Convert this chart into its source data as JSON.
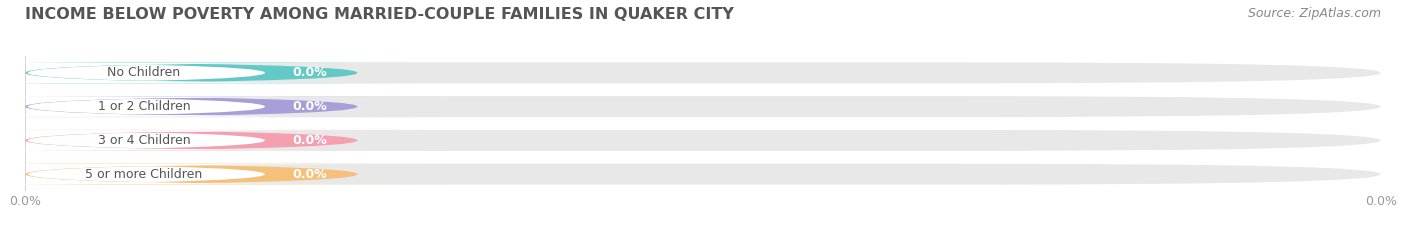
{
  "title": "INCOME BELOW POVERTY AMONG MARRIED-COUPLE FAMILIES IN QUAKER CITY",
  "source": "Source: ZipAtlas.com",
  "categories": [
    "No Children",
    "1 or 2 Children",
    "3 or 4 Children",
    "5 or more Children"
  ],
  "values": [
    0.0,
    0.0,
    0.0,
    0.0
  ],
  "bar_colors": [
    "#62c9c4",
    "#a89fd8",
    "#f4a0b0",
    "#f5c07a"
  ],
  "bar_bg_color": "#e8e8e8",
  "white_label_bg": "#ffffff",
  "title_fontsize": 11.5,
  "source_fontsize": 9,
  "tick_fontsize": 9,
  "label_fontsize": 9,
  "value_fontsize": 9,
  "fig_bg_color": "#ffffff",
  "label_text_color": "#555555",
  "value_text_color": "#ffffff",
  "tick_color": "#999999"
}
